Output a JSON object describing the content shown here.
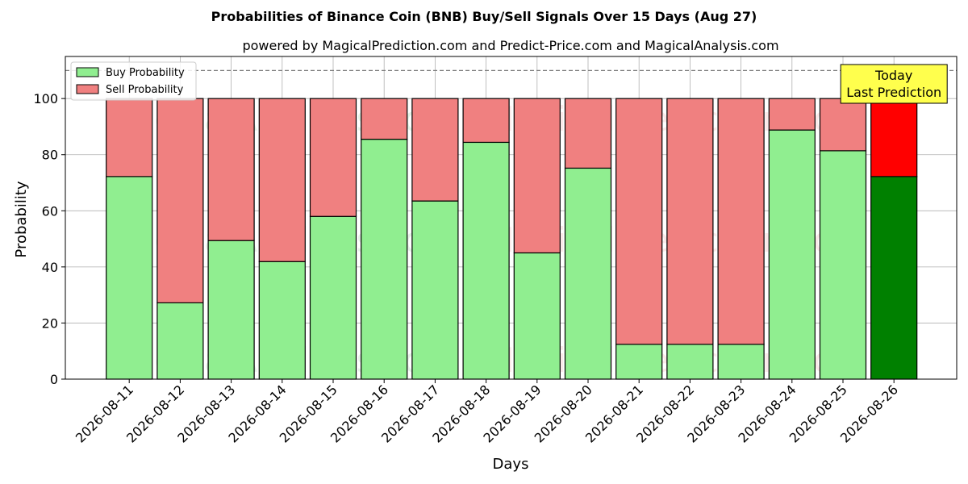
{
  "chart_data": {
    "type": "bar",
    "stacked": true,
    "title": "Probabilities of Binance Coin (BNB) Buy/Sell Signals Over 15 Days (Aug 27)",
    "subtitle": "powered by MagicalPrediction.com and Predict-Price.com and MagicalAnalysis.com",
    "xlabel": "Days",
    "ylabel": "Probability",
    "ylim": [
      0,
      115
    ],
    "yticks": [
      0,
      20,
      40,
      60,
      80,
      100
    ],
    "reference_line": 110,
    "grid": true,
    "legend_position": "top-left",
    "categories": [
      "2026-08-11",
      "2026-08-12",
      "2026-08-13",
      "2026-08-14",
      "2026-08-15",
      "2026-08-16",
      "2026-08-17",
      "2026-08-18",
      "2026-08-19",
      "2026-08-20",
      "2026-08-21",
      "2026-08-22",
      "2026-08-23",
      "2026-08-24",
      "2026-08-25",
      "2026-08-26"
    ],
    "series": [
      {
        "name": "Buy Probability",
        "color": "#90ee90",
        "highlight_color": "#008000",
        "values": [
          72.2,
          27.2,
          49.4,
          41.9,
          58.0,
          85.5,
          63.5,
          84.4,
          45.0,
          75.2,
          12.4,
          12.4,
          12.4,
          88.8,
          81.4,
          72.2
        ]
      },
      {
        "name": "Sell Probability",
        "color": "#f08080",
        "highlight_color": "#ff0000",
        "values": [
          27.8,
          72.8,
          50.6,
          58.1,
          42.0,
          14.5,
          36.5,
          15.6,
          55.0,
          24.8,
          87.6,
          87.6,
          87.6,
          11.2,
          18.6,
          27.8
        ]
      }
    ],
    "annotation": {
      "lines": [
        "Today",
        "Last Prediction"
      ],
      "target_index": 15,
      "background": "#ffff4d"
    },
    "watermarks": [
      "MagicalAnalysis.com",
      "MagicalPrediction.com"
    ]
  }
}
